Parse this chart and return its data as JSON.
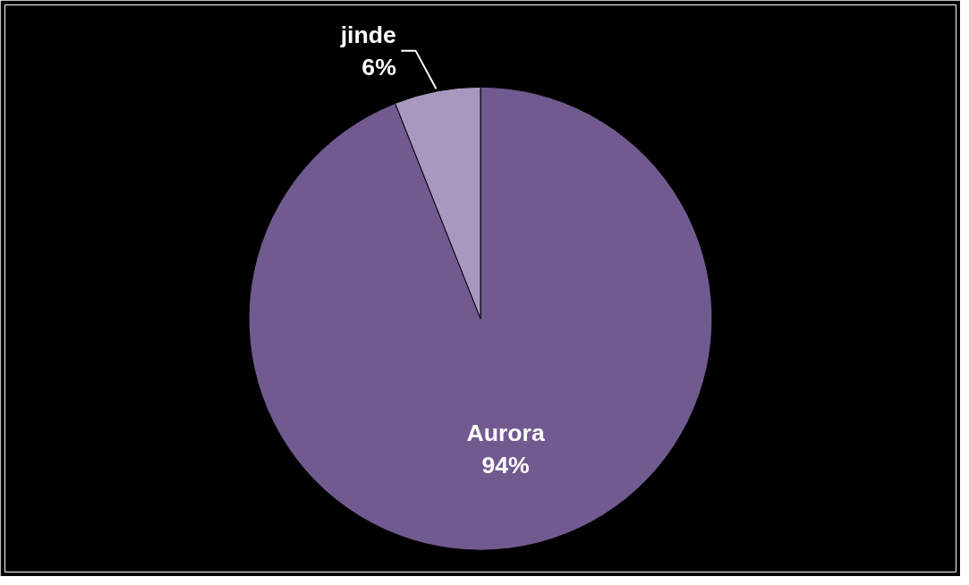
{
  "chart_data": {
    "type": "pie",
    "categories": [
      "Aurora",
      "jinde"
    ],
    "values": [
      94,
      6
    ],
    "colors": [
      "#715a8f",
      "#a898c0"
    ],
    "value_labels": [
      "94%",
      "6%"
    ]
  }
}
